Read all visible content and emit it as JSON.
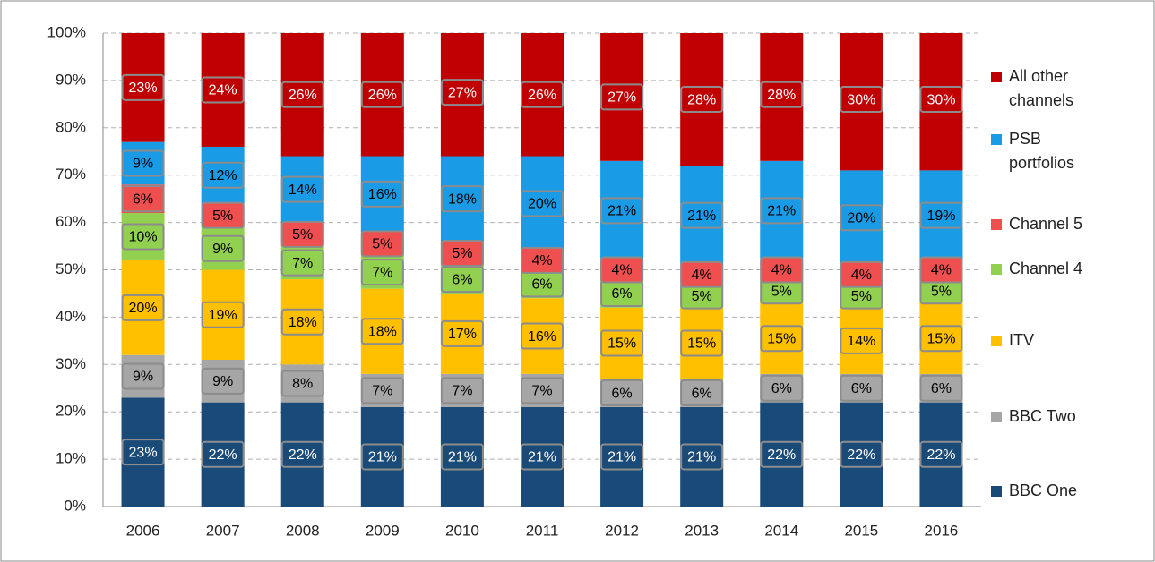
{
  "chart_data": {
    "type": "stacked_bar",
    "categories": [
      "2006",
      "2007",
      "2008",
      "2009",
      "2010",
      "2011",
      "2012",
      "2013",
      "2014",
      "2015",
      "2016"
    ],
    "ylim": [
      0,
      100
    ],
    "yticks": [
      {
        "value": 0,
        "label": "0%"
      },
      {
        "value": 10,
        "label": "10%"
      },
      {
        "value": 20,
        "label": "20%"
      },
      {
        "value": 30,
        "label": "30%"
      },
      {
        "value": 40,
        "label": "40%"
      },
      {
        "value": 50,
        "label": "50%"
      },
      {
        "value": 60,
        "label": "60%"
      },
      {
        "value": 70,
        "label": "70%"
      },
      {
        "value": 80,
        "label": "80%"
      },
      {
        "value": 90,
        "label": "90%"
      },
      {
        "value": 100,
        "label": "100%"
      }
    ],
    "grid": true,
    "legend": "right",
    "series": [
      {
        "name": "BBC One",
        "color": "#1a4a78",
        "label_color": "#ffffff",
        "values": [
          23,
          22,
          22,
          21,
          21,
          21,
          21,
          21,
          22,
          22,
          22
        ],
        "value_labels": [
          "23%",
          "22%",
          "22%",
          "21%",
          "21%",
          "21%",
          "21%",
          "21%",
          "22%",
          "22%",
          "22%"
        ]
      },
      {
        "name": "BBC Two",
        "color": "#a6a6a6",
        "label_color": "#000000",
        "values": [
          9,
          9,
          8,
          7,
          7,
          7,
          6,
          6,
          6,
          6,
          6
        ],
        "value_labels": [
          "9%",
          "9%",
          "8%",
          "7%",
          "7%",
          "7%",
          "6%",
          "6%",
          "6%",
          "6%",
          "6%"
        ]
      },
      {
        "name": "ITV",
        "color": "#ffc000",
        "label_color": "#000000",
        "values": [
          20,
          19,
          18,
          18,
          17,
          16,
          15,
          15,
          15,
          14,
          15
        ],
        "value_labels": [
          "20%",
          "19%",
          "18%",
          "18%",
          "17%",
          "16%",
          "15%",
          "15%",
          "15%",
          "14%",
          "15%"
        ]
      },
      {
        "name": "Channel 4",
        "color": "#92d050",
        "label_color": "#000000",
        "values": [
          10,
          9,
          7,
          7,
          6,
          6,
          6,
          5,
          5,
          5,
          5
        ],
        "value_labels": [
          "10%",
          "9%",
          "7%",
          "7%",
          "6%",
          "6%",
          "6%",
          "5%",
          "5%",
          "5%",
          "5%"
        ]
      },
      {
        "name": "Channel 5",
        "color": "#ef4f4f",
        "label_color": "#000000",
        "values": [
          6,
          5,
          5,
          5,
          5,
          4,
          4,
          4,
          4,
          4,
          4
        ],
        "value_labels": [
          "6%",
          "5%",
          "5%",
          "5%",
          "5%",
          "4%",
          "4%",
          "4%",
          "4%",
          "4%",
          "4%"
        ]
      },
      {
        "name": "PSB portfolios",
        "color": "#1a9be6",
        "label_color": "#000000",
        "values": [
          9,
          12,
          14,
          16,
          18,
          20,
          21,
          21,
          21,
          20,
          19
        ],
        "value_labels": [
          "9%",
          "12%",
          "14%",
          "16%",
          "18%",
          "20%",
          "21%",
          "21%",
          "21%",
          "20%",
          "19%"
        ]
      },
      {
        "name": "All other channels",
        "color": "#c00000",
        "label_color": "#ffffff",
        "values": [
          23,
          24,
          26,
          26,
          27,
          26,
          27,
          28,
          28,
          30,
          30
        ],
        "value_labels": [
          "23%",
          "24%",
          "26%",
          "26%",
          "27%",
          "26%",
          "27%",
          "28%",
          "28%",
          "30%",
          "30%"
        ]
      }
    ]
  }
}
